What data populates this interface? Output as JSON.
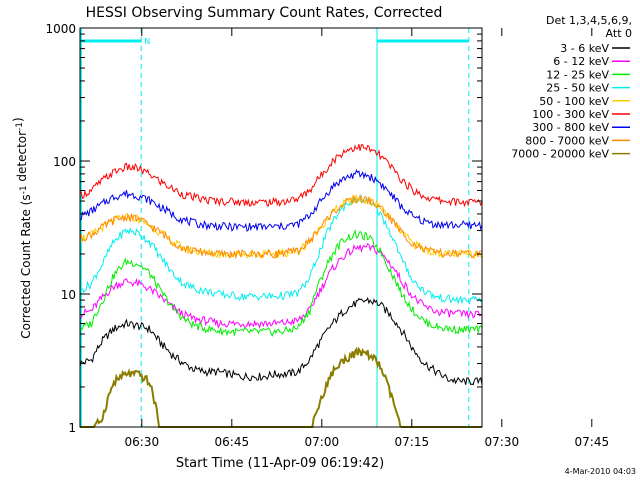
{
  "chart_data": {
    "type": "line",
    "title": "HESSI Observing Summary Count Rates, Corrected",
    "xlabel": "Start Time (11-Apr-09 06:19:42)",
    "ylabel": "Corrected Count Rate (s⁻¹ detector⁻¹)",
    "x_ticks": [
      "06:30",
      "06:45",
      "07:00",
      "07:15",
      "07:30",
      "07:45"
    ],
    "y_ticks": [
      "1",
      "10",
      "100",
      "1000"
    ],
    "y_scale": "log",
    "ylim": [
      1,
      1000
    ],
    "x_range_minutes_after_start": [
      0,
      67
    ],
    "legend": {
      "placement": "right",
      "header": [
        "Det 1,3,4,5,6,9,",
        "Att 0"
      ]
    },
    "series": [
      {
        "name": "3 - 6 keV",
        "color": "#000000",
        "values": [
          3.0,
          3.2,
          4.5,
          5.5,
          6.0,
          5.8,
          5.5,
          4.3,
          3.5,
          3.0,
          2.7,
          2.6,
          2.6,
          2.5,
          2.4,
          2.4,
          2.4,
          2.5,
          2.5,
          2.6,
          3.2,
          4.5,
          6.0,
          7.5,
          8.5,
          9.0,
          8.5,
          7.0,
          5.3,
          3.8,
          3.0,
          2.6,
          2.3,
          2.2,
          2.2,
          2.2
        ]
      },
      {
        "name": "6 - 12 keV",
        "color": "#ff00ff",
        "values": [
          7.0,
          7.5,
          9.5,
          11.5,
          12.5,
          12.0,
          11.0,
          9.5,
          8.0,
          7.0,
          6.5,
          6.3,
          6.0,
          6.0,
          6.0,
          6.0,
          6.0,
          6.0,
          6.1,
          6.3,
          7.5,
          11.0,
          15.5,
          19.5,
          22.0,
          22.5,
          21.0,
          17.0,
          12.5,
          9.5,
          8.0,
          7.4,
          7.2,
          7.1,
          7.0,
          7.0
        ]
      },
      {
        "name": "12 - 25 keV",
        "color": "#00ee00",
        "values": [
          5.5,
          6.0,
          9.0,
          14.0,
          17.5,
          17.0,
          14.5,
          10.5,
          8.0,
          6.5,
          5.8,
          5.5,
          5.3,
          5.2,
          5.2,
          5.2,
          5.2,
          5.2,
          5.3,
          5.6,
          7.5,
          13.0,
          20.0,
          26.0,
          28.0,
          27.0,
          22.0,
          15.0,
          10.0,
          7.5,
          6.2,
          5.7,
          5.5,
          5.4,
          5.4,
          5.4
        ]
      },
      {
        "name": "25 - 50 keV",
        "color": "#00eeee",
        "values": [
          10.5,
          12.0,
          17.0,
          25.0,
          30.0,
          29.0,
          25.0,
          19.0,
          14.5,
          12.0,
          11.0,
          10.5,
          10.0,
          9.8,
          9.6,
          9.6,
          9.6,
          9.6,
          9.8,
          10.2,
          13.0,
          22.0,
          35.0,
          46.0,
          52.0,
          50.0,
          42.0,
          29.0,
          18.0,
          12.5,
          10.5,
          9.5,
          9.2,
          9.0,
          9.0,
          9.0
        ]
      },
      {
        "name": "50 - 100 keV",
        "color": "#ffcc00",
        "values": [
          26.0,
          28.0,
          32.0,
          36.0,
          38.0,
          37.0,
          33.0,
          29.0,
          25.0,
          22.0,
          21.0,
          20.5,
          20.0,
          20.0,
          20.0,
          20.0,
          20.0,
          20.0,
          20.5,
          21.0,
          25.0,
          32.0,
          41.0,
          48.0,
          52.0,
          51.0,
          46.0,
          37.0,
          29.0,
          24.0,
          21.5,
          20.5,
          20.0,
          20.0,
          20.0,
          20.0
        ]
      },
      {
        "name": "100 - 300 keV",
        "color": "#ff0000",
        "values": [
          55.0,
          60.0,
          72.0,
          83.0,
          90.0,
          88.0,
          80.0,
          70.0,
          62.0,
          56.0,
          53.0,
          51.0,
          50.0,
          50.0,
          49.0,
          49.0,
          49.0,
          49.0,
          50.0,
          52.0,
          60.0,
          78.0,
          100.0,
          118.0,
          128.0,
          125.0,
          112.0,
          92.0,
          72.0,
          60.0,
          54.0,
          51.0,
          50.0,
          49.0,
          49.0,
          49.0
        ]
      },
      {
        "name": "300 - 800 keV",
        "color": "#ff0000",
        "values": [
          38.0,
          42.0,
          48.0,
          54.0,
          57.0,
          55.0,
          51.0,
          45.0,
          40.0,
          36.0,
          34.0,
          33.0,
          32.5,
          32.0,
          32.0,
          32.0,
          32.0,
          32.0,
          32.5,
          33.5,
          39.0,
          50.0,
          64.0,
          74.0,
          80.0,
          78.0,
          70.0,
          57.0,
          45.0,
          38.0,
          35.0,
          33.5,
          33.0,
          33.0,
          33.0,
          33.0
        ]
      },
      {
        "name": "800 - 7000 keV",
        "color": "#ff8800",
        "values": [
          26.0,
          28.0,
          32.0,
          36.0,
          38.0,
          37.0,
          33.0,
          29.0,
          25.0,
          22.0,
          21.0,
          20.5,
          20.0,
          20.0,
          20.0,
          20.0,
          20.0,
          20.0,
          20.5,
          21.0,
          25.0,
          32.0,
          41.0,
          48.0,
          52.0,
          51.0,
          46.0,
          37.0,
          29.0,
          24.0,
          21.5,
          20.5,
          20.0,
          20.0,
          20.0,
          20.0
        ]
      },
      {
        "name": "7000 - 20000 keV",
        "color": "#8b7d00",
        "values": [
          0.9,
          0.9,
          1.2,
          2.2,
          2.5,
          2.5,
          2.2,
          0.9,
          0.9,
          0.9,
          0.9,
          0.9,
          0.9,
          0.9,
          0.9,
          0.9,
          0.9,
          0.9,
          0.9,
          0.9,
          0.9,
          1.6,
          2.6,
          3.2,
          3.6,
          3.6,
          3.0,
          1.8,
          0.9,
          0.9,
          0.9,
          0.9,
          0.9,
          0.9,
          0.9,
          0.9
        ]
      }
    ],
    "series_color_overrides": {
      "300 - 800 keV": "#0000ee"
    },
    "annotations": {
      "night_flag": "N",
      "night_bars_start_end_minutes": [
        [
          0,
          10.2
        ],
        [
          49.5,
          64.8
        ]
      ],
      "saa_marker_minutes": [
        10.2,
        49.5,
        64.8
      ]
    },
    "footer": "4-Mar-2010 04:03",
    "colors": {
      "axis": "#000000",
      "marker": "#00eeee",
      "background": "#ffffff"
    }
  }
}
